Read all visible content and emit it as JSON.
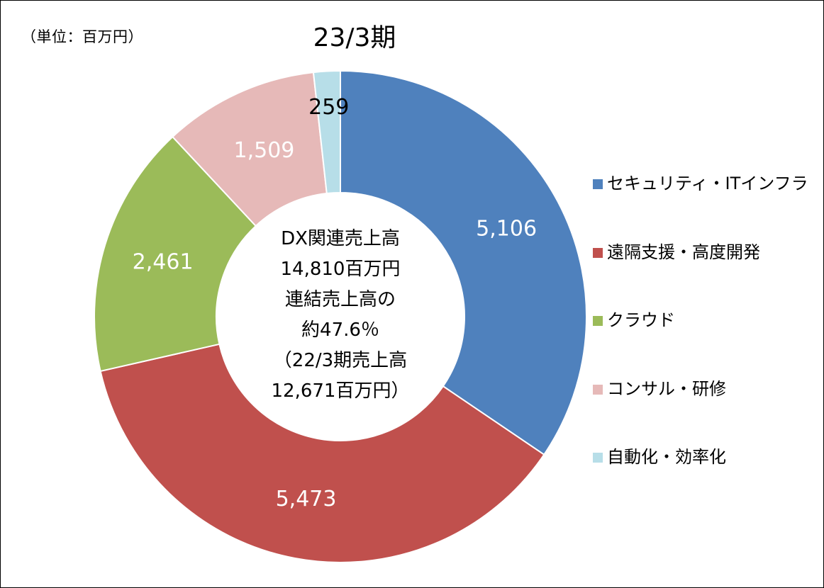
{
  "unit_label": "（単位：百万円）",
  "chart_data": {
    "type": "pie",
    "title": "23/3期",
    "categories": [
      "セキュリティ・ITインフラ",
      "遠隔支援・高度開発",
      "クラウド",
      "コンサル・研修",
      "自動化・効率化"
    ],
    "values": [
      5106,
      5473,
      2461,
      1509,
      259
    ],
    "data_labels": [
      "5,106",
      "5,473",
      "2,461",
      "1,509",
      "259"
    ],
    "colors": [
      "#4F81BD",
      "#C0504D",
      "#9BBB59",
      "#E6B9B8",
      "#B7DEE8"
    ],
    "label_colors": [
      "#FFFFFF",
      "#FFFFFF",
      "#FFFFFF",
      "#FFFFFF",
      "#000000"
    ],
    "donut": true,
    "start": "top, clockwise",
    "legend_position": "right",
    "center_text": [
      "DX関連売上高",
      "14,810百万円",
      "連結売上高の",
      "約47.6％",
      "（22/3期売上高",
      "12,671百万円）"
    ]
  }
}
